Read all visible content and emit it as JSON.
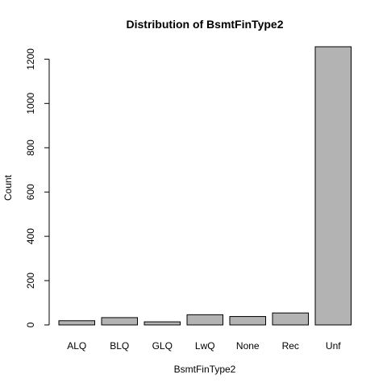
{
  "chart_data": {
    "type": "bar",
    "title": "Distribution of BsmtFinType2",
    "xlabel": "BsmtFinType2",
    "ylabel": "Count",
    "categories": [
      "ALQ",
      "BLQ",
      "GLQ",
      "LwQ",
      "None",
      "Rec",
      "Unf"
    ],
    "values": [
      19,
      33,
      14,
      46,
      38,
      54,
      1256
    ],
    "ylim": [
      0,
      1200
    ],
    "yticks": [
      0,
      200,
      400,
      600,
      800,
      1000,
      1200
    ],
    "bar_color": "#b3b3b3",
    "grid": false,
    "legend": "none"
  }
}
